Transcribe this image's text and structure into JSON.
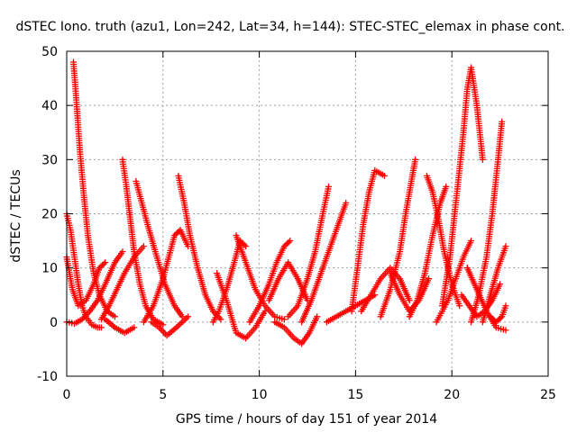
{
  "chart_data": {
    "type": "scatter",
    "title": "dSTEC Iono. truth (azu1, Lon=242, Lat=34, h=144): STEC-STEC_elemax in phase cont.",
    "xlabel": "GPS time / hours of day 151 of year 2014",
    "ylabel": "dSTEC  / TECUs",
    "xlim": [
      0,
      25
    ],
    "ylim": [
      -10,
      50
    ],
    "x_ticks": [
      0,
      5,
      10,
      15,
      20,
      25
    ],
    "y_ticks": [
      -10,
      0,
      10,
      20,
      30,
      40,
      50
    ],
    "x_tick_labels": [
      "0",
      "5",
      "10",
      "15",
      "20",
      "25"
    ],
    "y_tick_labels": [
      "-10",
      "0",
      "10",
      "20",
      "30",
      "40",
      "50"
    ],
    "grid": true,
    "legend": "none",
    "marker": "+",
    "color": "#ff0000",
    "series": [
      {
        "x": [
          0.0,
          0.2,
          0.4,
          0.6,
          0.8,
          1.0,
          1.3,
          1.6,
          1.8
        ],
        "y": [
          20,
          17,
          12,
          7,
          3,
          1,
          -0.5,
          -1,
          -1
        ]
      },
      {
        "x": [
          0.35,
          0.5,
          0.7,
          0.9,
          1.1,
          1.4,
          1.7,
          2.1,
          2.5
        ],
        "y": [
          48,
          41,
          31,
          23,
          16,
          9,
          5,
          2,
          1
        ]
      },
      {
        "x": [
          0.0,
          0.3,
          0.6,
          1.0,
          1.4,
          1.7,
          2.0
        ],
        "y": [
          12,
          6,
          3,
          4,
          7,
          10,
          11
        ]
      },
      {
        "x": [
          0.0,
          0.4,
          0.8,
          1.2,
          1.6,
          2.0,
          2.5,
          2.9
        ],
        "y": [
          0,
          -0.3,
          0.5,
          2,
          4,
          7,
          11,
          13
        ]
      },
      {
        "x": [
          2.9,
          3.1,
          3.3,
          3.5,
          3.8,
          4.1,
          4.5,
          5.0
        ],
        "y": [
          30,
          25,
          19,
          13,
          7,
          3,
          0.5,
          -0.5
        ]
      },
      {
        "x": [
          3.6,
          3.9,
          4.2,
          4.6,
          5.1,
          5.6,
          6.0
        ],
        "y": [
          26,
          22,
          18,
          13,
          7,
          3,
          1
        ]
      },
      {
        "x": [
          1.8,
          2.2,
          2.6,
          3.0,
          3.5,
          4.0
        ],
        "y": [
          0.5,
          3,
          6,
          9,
          12,
          14
        ]
      },
      {
        "x": [
          4.0,
          4.5,
          5.0,
          5.3,
          5.6,
          5.9,
          6.3
        ],
        "y": [
          0,
          3,
          8,
          12,
          16,
          17,
          14
        ]
      },
      {
        "x": [
          5.8,
          6.1,
          6.4,
          6.8,
          7.2,
          7.6,
          8.0
        ],
        "y": [
          27,
          22,
          16,
          10,
          5,
          2,
          0.5
        ]
      },
      {
        "x": [
          4.4,
          4.8,
          5.2,
          5.7,
          6.3
        ],
        "y": [
          0,
          -1,
          -2.5,
          -1,
          1
        ]
      },
      {
        "x": [
          2.0,
          2.5,
          3.0,
          3.5
        ],
        "y": [
          0.5,
          -1,
          -2,
          -1
        ]
      },
      {
        "x": [
          7.6,
          7.9,
          8.3,
          8.7,
          9.0,
          9.3
        ],
        "y": [
          0,
          2,
          6,
          11,
          15,
          14
        ]
      },
      {
        "x": [
          7.8,
          8.3,
          8.8,
          9.3,
          9.8,
          10.3
        ],
        "y": [
          9,
          4,
          -2,
          -3,
          -1,
          2
        ]
      },
      {
        "x": [
          8.8,
          9.3,
          9.8,
          10.3,
          10.8,
          11.3
        ],
        "y": [
          16,
          11,
          6,
          3,
          1,
          0.5
        ]
      },
      {
        "x": [
          9.5,
          10.0,
          10.5,
          10.9,
          11.3,
          11.6
        ],
        "y": [
          0,
          3,
          7,
          11,
          14,
          15
        ]
      },
      {
        "x": [
          10.8,
          11.3,
          11.8,
          12.2,
          12.6,
          13.0
        ],
        "y": [
          0,
          -1,
          -3,
          -4,
          -2,
          1
        ]
      },
      {
        "x": [
          11.5,
          12.0,
          12.5,
          12.9,
          13.3,
          13.6
        ],
        "y": [
          1,
          3,
          8,
          13,
          20,
          25
        ]
      },
      {
        "x": [
          10.5,
          11.0,
          11.5,
          12.0,
          12.5
        ],
        "y": [
          4,
          8,
          11,
          8,
          4
        ]
      },
      {
        "x": [
          12.2,
          12.7,
          13.2,
          13.7,
          14.2,
          14.5
        ],
        "y": [
          0,
          4,
          9,
          14,
          19,
          22
        ]
      },
      {
        "x": [
          13.5,
          14.0,
          14.5,
          15.0,
          15.5,
          16.0
        ],
        "y": [
          0,
          1,
          2,
          3,
          4,
          5
        ]
      },
      {
        "x": [
          14.8,
          15.1,
          15.4,
          15.7,
          16.0,
          16.5
        ],
        "y": [
          2,
          10,
          18,
          24,
          28,
          27
        ]
      },
      {
        "x": [
          15.3,
          15.8,
          16.3,
          16.8,
          17.3,
          17.8
        ],
        "y": [
          2,
          5,
          8,
          10,
          8,
          4
        ]
      },
      {
        "x": [
          16.3,
          16.8,
          17.3,
          17.6,
          17.9,
          18.1
        ],
        "y": [
          1,
          6,
          13,
          20,
          26,
          30
        ]
      },
      {
        "x": [
          16.8,
          17.3,
          17.8,
          18.3,
          18.8
        ],
        "y": [
          9,
          5,
          2,
          4,
          8
        ]
      },
      {
        "x": [
          17.8,
          18.2,
          18.6,
          19.0,
          19.4,
          19.7
        ],
        "y": [
          1,
          4,
          9,
          16,
          22,
          25
        ]
      },
      {
        "x": [
          18.7,
          19.0,
          19.3,
          19.6,
          20.0,
          20.4
        ],
        "y": [
          27,
          24,
          19,
          13,
          7,
          3
        ]
      },
      {
        "x": [
          19.2,
          19.5,
          19.8,
          20.2,
          20.6,
          21.0
        ],
        "y": [
          0,
          2,
          4,
          8,
          12,
          15
        ]
      },
      {
        "x": [
          19.5,
          19.9,
          20.3,
          20.6,
          20.8,
          21.0,
          21.3,
          21.6
        ],
        "y": [
          3,
          12,
          25,
          35,
          43,
          47,
          40,
          30
        ]
      },
      {
        "x": [
          20.5,
          20.9,
          21.3,
          21.7,
          22.1,
          22.5
        ],
        "y": [
          5,
          3,
          1,
          2,
          4,
          7
        ]
      },
      {
        "x": [
          21.0,
          21.4,
          21.8,
          22.1,
          22.4,
          22.6
        ],
        "y": [
          0,
          5,
          12,
          20,
          30,
          37
        ]
      },
      {
        "x": [
          21.6,
          22.0,
          22.4,
          22.8
        ],
        "y": [
          0,
          5,
          10,
          14
        ]
      },
      {
        "x": [
          20.8,
          21.3,
          21.8,
          22.3,
          22.8
        ],
        "y": [
          10,
          6,
          2,
          -1,
          -1.5
        ]
      },
      {
        "x": [
          22.0,
          22.3,
          22.6,
          22.8
        ],
        "y": [
          1,
          0,
          1,
          3
        ]
      }
    ]
  }
}
